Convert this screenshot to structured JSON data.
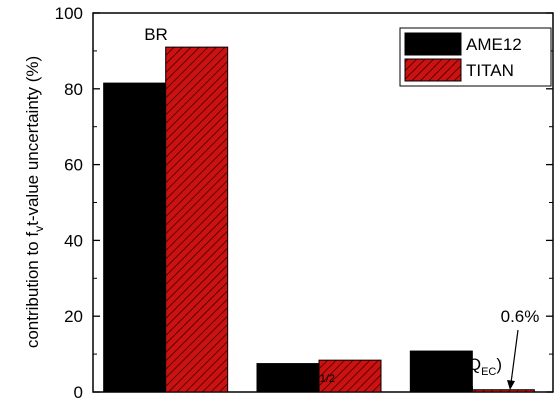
{
  "chart_data": {
    "type": "bar",
    "categories": [
      "BR",
      "t1/2",
      "fv(QEC)"
    ],
    "series": [
      {
        "name": "AME12",
        "values": [
          81.5,
          7.5,
          10.8
        ],
        "color": "#000000",
        "pattern": "solid"
      },
      {
        "name": "TITAN",
        "values": [
          91.0,
          8.4,
          0.6
        ],
        "color": "#cc1111",
        "pattern": "hatched"
      }
    ],
    "ylabel": {
      "prefix": "contribution to f",
      "sub": "v",
      "suffix": "t-value uncertainty (%)"
    },
    "ylim": [
      0,
      100
    ],
    "yticks": [
      "0",
      "20",
      "40",
      "60",
      "80",
      "100"
    ],
    "legend_position": "top-right",
    "annotations": {
      "br": "BR",
      "thalf": {
        "base": "t",
        "sub": "1/2"
      },
      "fv": {
        "base": "f",
        "sub1": "v",
        "open": "(Q",
        "sub2": "EC",
        "close": ")"
      },
      "pct": "0.6%"
    }
  }
}
